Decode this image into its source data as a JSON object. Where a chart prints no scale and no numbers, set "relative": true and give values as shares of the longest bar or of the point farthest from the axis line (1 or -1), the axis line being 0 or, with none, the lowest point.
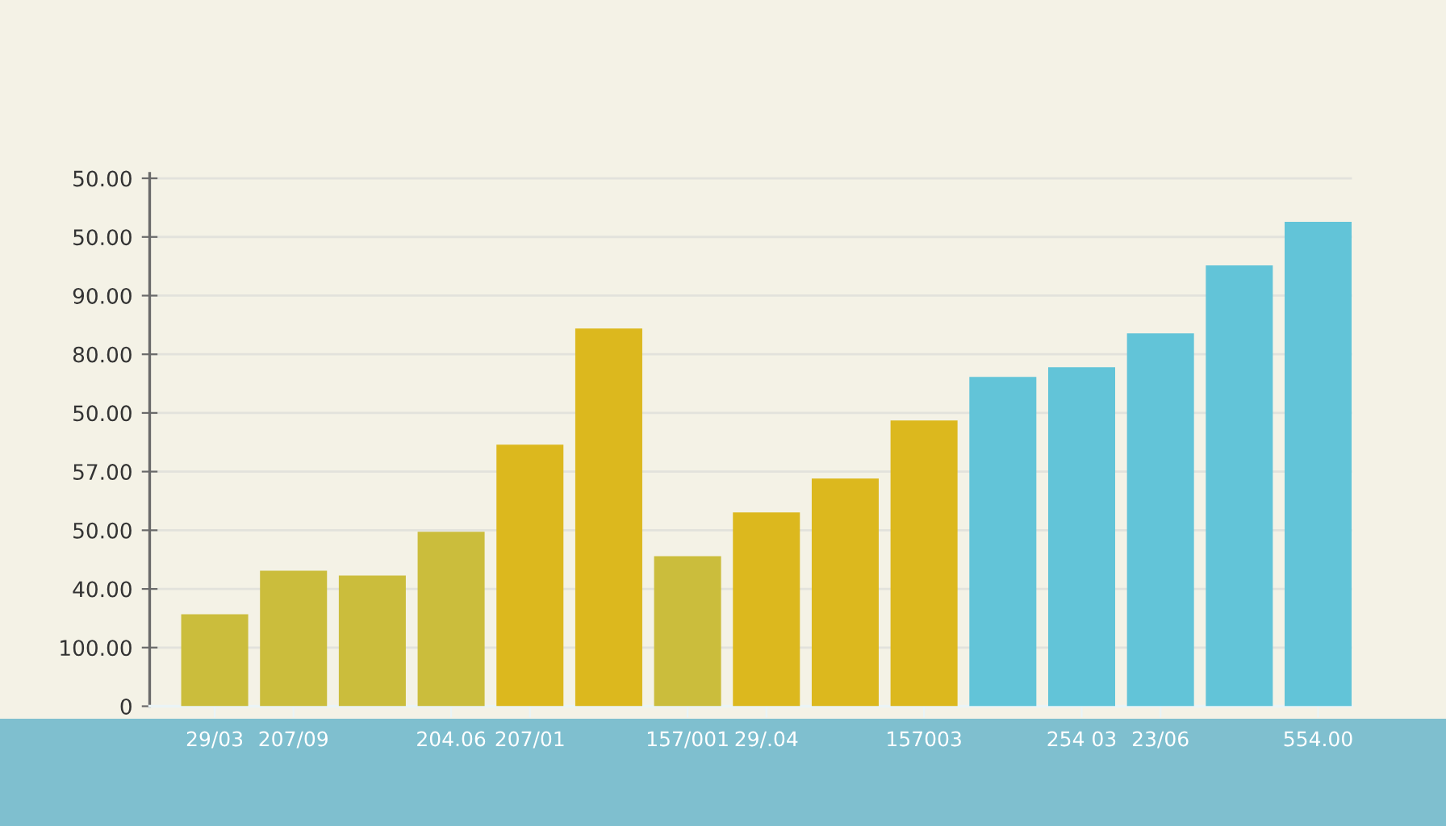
{
  "chart_data": {
    "type": "bar",
    "relative": true,
    "categories": [
      "29/03",
      "207/09",
      null,
      "204.06",
      "207/01",
      null,
      "157/001",
      "29/.04",
      null,
      "157003",
      null,
      "254 03",
      "23/06",
      null,
      "554.00"
    ],
    "values": [
      0.19,
      0.28,
      0.27,
      0.36,
      0.54,
      0.78,
      0.31,
      0.4,
      0.47,
      0.59,
      0.68,
      0.7,
      0.77,
      0.91,
      1
    ],
    "colors": [
      "#cbbd3c",
      "#cbbd3c",
      "#cbbd3c",
      "#cbbd3c",
      "#dcb81e",
      "#dcb81e",
      "#cbbd3c",
      "#dcb81e",
      "#dcb81e",
      "#dcb81e",
      "#62c4d8",
      "#62c4d8",
      "#62c4d8",
      "#62c4d8",
      "#62c4d8"
    ],
    "annotations": [
      "0",
      "100.00",
      "40.00",
      "50.00",
      "57.00",
      "50.00",
      "80.00",
      "90.00",
      "50.00",
      "50.00"
    ],
    "grid": "y"
  }
}
